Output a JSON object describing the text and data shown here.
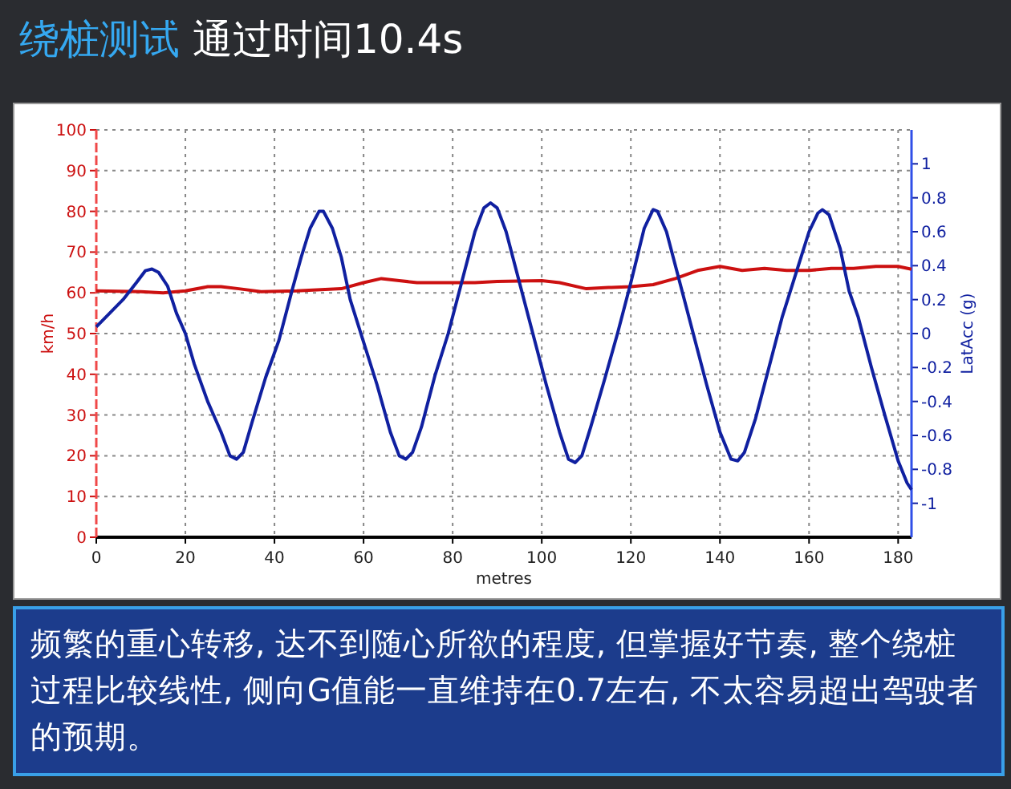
{
  "chart_data": {
    "type": "line",
    "title": "绕桩测试",
    "subtitle": "通过时间10.4s",
    "xlabel": "metres",
    "ylabel": "km/h",
    "y2label": "LatAcc (g)",
    "annotations": [
      "频繁的重心转移, 达不到随心所欲的程度, 但掌握好节奏, 整个绕桩过程比较线性, 侧向G值能一直维持在0.7左右, 不太容易超出驾驶者的预期。"
    ],
    "xlim": [
      0,
      183
    ],
    "xticks": [
      0,
      20,
      40,
      60,
      80,
      100,
      120,
      140,
      160,
      180
    ],
    "ylim": [
      0,
      100
    ],
    "yticks": [
      0,
      10,
      20,
      30,
      40,
      50,
      60,
      70,
      80,
      90,
      100
    ],
    "y2lim": [
      -1.2,
      1.2
    ],
    "y2ticks": [
      {
        "value": -1,
        "label": "-1"
      },
      {
        "value": -0.8,
        "label": "-0.8"
      },
      {
        "value": -0.6,
        "label": "-0.6"
      },
      {
        "value": -0.4,
        "label": "-0.4"
      },
      {
        "value": -0.2,
        "label": "-0.2"
      },
      {
        "value": 0,
        "label": "0"
      },
      {
        "value": 0.2,
        "label": "0.2"
      },
      {
        "value": 0.4,
        "label": "0.4"
      },
      {
        "value": 0.6,
        "label": "0.6"
      },
      {
        "value": 0.8,
        "label": "0.8"
      },
      {
        "value": 1,
        "label": "1"
      }
    ],
    "grid": true,
    "series": [
      {
        "color": "#cc1010",
        "x": [
          0,
          10,
          15,
          20,
          25,
          28,
          32,
          37,
          45,
          55,
          60,
          64,
          68,
          72,
          85,
          90,
          100,
          104,
          110,
          115,
          120,
          125,
          130,
          135,
          140,
          145,
          150,
          155,
          160,
          165,
          170,
          175,
          180,
          183
        ],
        "values": [
          60.5,
          60.3,
          60,
          60.5,
          61.5,
          61.5,
          61,
          60.3,
          60.5,
          61,
          62.5,
          63.5,
          63,
          62.5,
          62.5,
          62.8,
          63,
          62.5,
          61,
          61.3,
          61.5,
          62,
          63.5,
          65.5,
          66.5,
          65.5,
          66,
          65.5,
          65.5,
          66,
          66,
          66.5,
          66.5,
          65.8
        ]
      },
      {
        "color": "#1020a0",
        "axis": "y2",
        "x": [
          0,
          3,
          6,
          9,
          11,
          12.5,
          14,
          16,
          18,
          20,
          22,
          25,
          28,
          30,
          31.5,
          33,
          35,
          38,
          41,
          44,
          46,
          48,
          50,
          51,
          53,
          55,
          57,
          60,
          63,
          66,
          68,
          69.5,
          71,
          73,
          76,
          79,
          82,
          85,
          87,
          88.5,
          90,
          92,
          95,
          98,
          101,
          104,
          106,
          107.5,
          109,
          111,
          114,
          117,
          120,
          123,
          125,
          126,
          128,
          131,
          134,
          137,
          140,
          142.5,
          144,
          145.5,
          148,
          151,
          154,
          157,
          160,
          162,
          163,
          164.5,
          167,
          169,
          171,
          174,
          177,
          180,
          182,
          183
        ],
        "values": [
          0.04,
          0.12,
          0.2,
          0.3,
          0.37,
          0.38,
          0.36,
          0.28,
          0.12,
          0.0,
          -0.18,
          -0.4,
          -0.58,
          -0.72,
          -0.74,
          -0.7,
          -0.52,
          -0.26,
          -0.04,
          0.26,
          0.45,
          0.62,
          0.72,
          0.72,
          0.62,
          0.45,
          0.2,
          -0.05,
          -0.3,
          -0.58,
          -0.72,
          -0.74,
          -0.7,
          -0.55,
          -0.25,
          0.0,
          0.3,
          0.6,
          0.74,
          0.77,
          0.74,
          0.6,
          0.3,
          0.0,
          -0.3,
          -0.58,
          -0.74,
          -0.76,
          -0.72,
          -0.55,
          -0.28,
          0.0,
          0.3,
          0.62,
          0.73,
          0.72,
          0.6,
          0.3,
          0.0,
          -0.3,
          -0.58,
          -0.74,
          -0.75,
          -0.7,
          -0.5,
          -0.2,
          0.1,
          0.35,
          0.6,
          0.71,
          0.73,
          0.7,
          0.5,
          0.25,
          0.1,
          -0.2,
          -0.48,
          -0.75,
          -0.88,
          -0.92
        ]
      }
    ]
  }
}
